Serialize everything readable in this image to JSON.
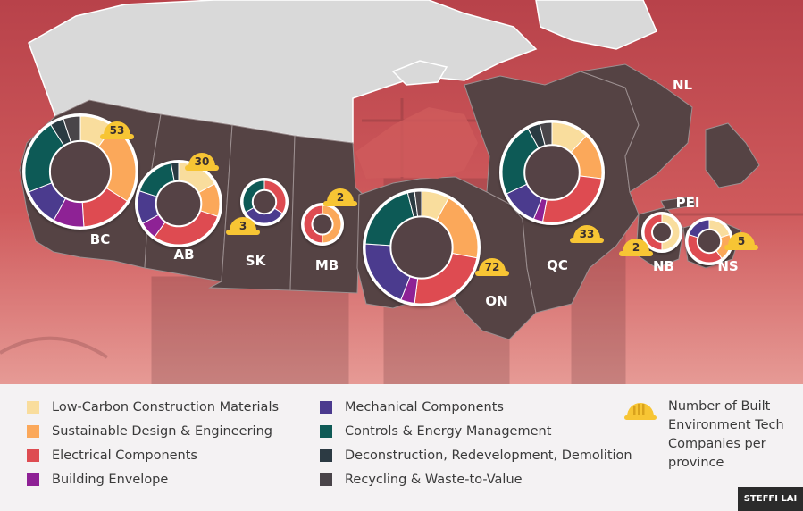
{
  "colors": {
    "low_carbon": "#f9dd9d",
    "sustainable_design": "#fba85a",
    "electrical": "#de4c51",
    "building_envelope": "#8e2195",
    "mechanical": "#4b3a8e",
    "controls_energy": "#0f5a56",
    "deconstruction": "#2c3a43",
    "recycling": "#494449",
    "hat": "#f7c534",
    "land": "#554344",
    "north": "#d9d9d9"
  },
  "legend": {
    "items": [
      {
        "key": "low_carbon",
        "label": "Low-Carbon Construction Materials"
      },
      {
        "key": "sustainable_design",
        "label": "Sustainable Design & Engineering"
      },
      {
        "key": "electrical",
        "label": "Electrical Components"
      },
      {
        "key": "building_envelope",
        "label": "Building Envelope"
      },
      {
        "key": "mechanical",
        "label": "Mechanical Components"
      },
      {
        "key": "controls_energy",
        "label": "Controls & Energy Management"
      },
      {
        "key": "deconstruction",
        "label": "Deconstruction, Redevelopment, Demolition"
      },
      {
        "key": "recycling",
        "label": "Recycling & Waste-to-Value"
      }
    ],
    "hat_icon": "hard-hat-icon",
    "hat_label": "Number of Built Environment Tech Companies per province"
  },
  "provinces": [
    {
      "code": "BC",
      "companies": 53,
      "shares": {
        "low_carbon": 0.1,
        "sustainable_design": 0.24,
        "electrical": 0.15,
        "building_envelope": 0.09,
        "mechanical": 0.11,
        "controls_energy": 0.22,
        "deconstruction": 0.04,
        "recycling": 0.05
      }
    },
    {
      "code": "AB",
      "companies": 30,
      "shares": {
        "low_carbon": 0.17,
        "sustainable_design": 0.13,
        "electrical": 0.3,
        "building_envelope": 0.07,
        "mechanical": 0.13,
        "controls_energy": 0.17,
        "deconstruction": 0.03,
        "recycling": 0.0
      }
    },
    {
      "code": "SK",
      "companies": 3,
      "shares": {
        "low_carbon": 0.0,
        "sustainable_design": 0.0,
        "electrical": 0.34,
        "building_envelope": 0.0,
        "mechanical": 0.33,
        "controls_energy": 0.33,
        "deconstruction": 0.0,
        "recycling": 0.0
      }
    },
    {
      "code": "MB",
      "companies": 2,
      "shares": {
        "low_carbon": 0.0,
        "sustainable_design": 0.5,
        "electrical": 0.5,
        "building_envelope": 0.0,
        "mechanical": 0.0,
        "controls_energy": 0.0,
        "deconstruction": 0.0,
        "recycling": 0.0
      }
    },
    {
      "code": "ON",
      "companies": 72,
      "shares": {
        "low_carbon": 0.08,
        "sustainable_design": 0.2,
        "electrical": 0.24,
        "building_envelope": 0.04,
        "mechanical": 0.2,
        "controls_energy": 0.2,
        "deconstruction": 0.02,
        "recycling": 0.02
      }
    },
    {
      "code": "QC",
      "companies": 33,
      "shares": {
        "low_carbon": 0.12,
        "sustainable_design": 0.15,
        "electrical": 0.26,
        "building_envelope": 0.03,
        "mechanical": 0.12,
        "controls_energy": 0.24,
        "deconstruction": 0.04,
        "recycling": 0.04
      }
    },
    {
      "code": "NB",
      "companies": 2,
      "shares": {
        "low_carbon": 0.5,
        "sustainable_design": 0.0,
        "electrical": 0.5,
        "building_envelope": 0.0,
        "mechanical": 0.0,
        "controls_energy": 0.0,
        "deconstruction": 0.0,
        "recycling": 0.0
      }
    },
    {
      "code": "NS",
      "companies": 5,
      "shares": {
        "low_carbon": 0.2,
        "sustainable_design": 0.2,
        "electrical": 0.4,
        "building_envelope": 0.0,
        "mechanical": 0.2,
        "controls_energy": 0.0,
        "deconstruction": 0.0,
        "recycling": 0.0
      }
    }
  ],
  "other_labels": {
    "nl": "NL",
    "pei": "PEI"
  },
  "credit": "STEFFI LAI"
}
